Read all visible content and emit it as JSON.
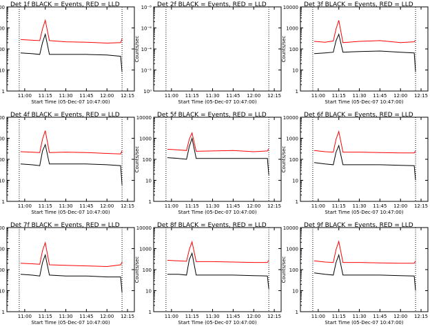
{
  "colors": {
    "events": "#000000",
    "lld": "#ff0000",
    "axis": "#000000"
  },
  "panel_defaults": {
    "x_ticks": [
      "11:00",
      "11:15",
      "11:30",
      "11:45",
      "12:00",
      "12:15"
    ],
    "xlabel": "Start Time (05-Dec-07 10:47:00)",
    "ylabel": "Counts/sec",
    "y_ticks": [
      "1",
      "10",
      "100",
      "1000",
      "10000"
    ],
    "xlim": [
      "10:47:00",
      "12:20:00"
    ],
    "ylim": [
      1,
      10000
    ],
    "y_scale": "log",
    "vlines": [
      "10:56:00",
      "12:11:00"
    ]
  },
  "chart_data": [
    {
      "type": "line",
      "title": "Det 1f BLACK = Events, RED = LLD",
      "x": [
        "10:57",
        "11:05",
        "11:11",
        "11:13",
        "11:15",
        "11:18",
        "11:30",
        "11:45",
        "12:00",
        "12:10",
        "12:11"
      ],
      "series": [
        {
          "values": [
            65,
            60,
            55,
            200,
            500,
            55,
            55,
            55,
            52,
            45,
            8
          ]
        },
        {
          "values": [
            280,
            260,
            250,
            900,
            2300,
            250,
            220,
            210,
            190,
            200,
            300
          ]
        }
      ]
    },
    {
      "type": "line",
      "title": "Det 2f BLACK = Events, RED = LLD",
      "y_ticks": [
        "10⁰",
        "10⁻²",
        "10⁻⁴",
        "10⁻⁶",
        "10⁻⁸"
      ],
      "ylim": [
        1,
        1e-08
      ],
      "x": [],
      "series": []
    },
    {
      "type": "line",
      "title": "Det 3f BLACK = Events, RED = LLD",
      "x": [
        "10:57",
        "11:05",
        "11:11",
        "11:13",
        "11:15",
        "11:18",
        "11:30",
        "11:45",
        "12:00",
        "12:10",
        "12:11"
      ],
      "series": [
        {
          "values": [
            60,
            65,
            70,
            250,
            500,
            70,
            75,
            80,
            70,
            65,
            8
          ]
        },
        {
          "values": [
            230,
            210,
            240,
            900,
            2300,
            200,
            230,
            250,
            200,
            220,
            260
          ]
        }
      ]
    },
    {
      "type": "line",
      "title": "Det 4f BLACK = Events, RED = LLD",
      "x": [
        "10:57",
        "11:05",
        "11:11",
        "11:13",
        "11:15",
        "11:18",
        "11:30",
        "11:45",
        "12:00",
        "12:10",
        "12:11"
      ],
      "series": [
        {
          "values": [
            60,
            55,
            50,
            250,
            500,
            60,
            60,
            60,
            55,
            50,
            6
          ]
        },
        {
          "values": [
            230,
            220,
            210,
            900,
            2300,
            210,
            220,
            210,
            190,
            180,
            260
          ]
        }
      ]
    },
    {
      "type": "line",
      "title": "Det 5f BLACK = Events, RED = LLD",
      "x": [
        "10:57",
        "11:05",
        "11:11",
        "11:13",
        "11:15",
        "11:18",
        "11:30",
        "11:45",
        "12:00",
        "12:10",
        "12:11"
      ],
      "series": [
        {
          "values": [
            120,
            110,
            100,
            400,
            1000,
            110,
            110,
            110,
            110,
            110,
            18
          ]
        },
        {
          "values": [
            300,
            280,
            260,
            900,
            1800,
            240,
            250,
            260,
            230,
            250,
            320
          ]
        }
      ]
    },
    {
      "type": "line",
      "title": "Det 6f BLACK = Events, RED = LLD",
      "x": [
        "10:57",
        "11:05",
        "11:11",
        "11:13",
        "11:15",
        "11:18",
        "11:30",
        "11:45",
        "12:00",
        "12:10",
        "12:11"
      ],
      "series": [
        {
          "values": [
            70,
            60,
            55,
            220,
            450,
            55,
            55,
            55,
            52,
            50,
            10
          ]
        },
        {
          "values": [
            260,
            230,
            220,
            900,
            2100,
            220,
            220,
            210,
            200,
            200,
            250
          ]
        }
      ]
    },
    {
      "type": "line",
      "title": "Det 7f BLACK = Events, RED = LLD",
      "x": [
        "10:57",
        "11:05",
        "11:11",
        "11:13",
        "11:15",
        "11:18",
        "11:30",
        "11:45",
        "12:00",
        "12:10",
        "12:11"
      ],
      "series": [
        {
          "values": [
            60,
            55,
            50,
            220,
            500,
            55,
            50,
            50,
            45,
            45,
            8
          ]
        },
        {
          "values": [
            200,
            190,
            180,
            800,
            1900,
            170,
            160,
            150,
            140,
            170,
            230
          ]
        }
      ]
    },
    {
      "type": "line",
      "title": "Det 8f BLACK = Events, RED = LLD",
      "x": [
        "10:57",
        "11:05",
        "11:11",
        "11:13",
        "11:15",
        "11:18",
        "11:30",
        "11:45",
        "12:00",
        "12:10",
        "12:11"
      ],
      "series": [
        {
          "values": [
            60,
            60,
            55,
            300,
            600,
            55,
            55,
            55,
            52,
            50,
            12
          ]
        },
        {
          "values": [
            280,
            260,
            250,
            900,
            2100,
            240,
            240,
            230,
            220,
            220,
            280
          ]
        }
      ]
    },
    {
      "type": "line",
      "title": "Det 9f BLACK = Events, RED = LLD",
      "x": [
        "10:57",
        "11:05",
        "11:11",
        "11:13",
        "11:15",
        "11:18",
        "11:30",
        "11:45",
        "12:00",
        "12:10",
        "12:11"
      ],
      "series": [
        {
          "values": [
            70,
            60,
            55,
            220,
            500,
            55,
            55,
            55,
            52,
            50,
            10
          ]
        },
        {
          "values": [
            260,
            230,
            220,
            900,
            2200,
            220,
            220,
            210,
            200,
            200,
            260
          ]
        }
      ]
    }
  ]
}
